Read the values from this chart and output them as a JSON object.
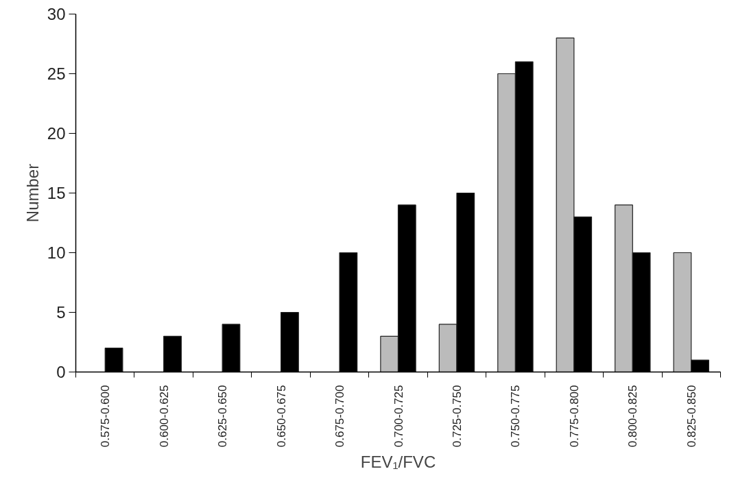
{
  "chart_data": {
    "type": "bar",
    "xlabel": "FEV₁/FVC",
    "ylabel": "Number",
    "categories": [
      "0.575-0.600",
      "0.600-0.625",
      "0.625-0.650",
      "0.650-0.675",
      "0.675-0.700",
      "0.700-0.725",
      "0.725-0.750",
      "0.750-0.775",
      "0.775-0.800",
      "0.800-0.825",
      "0.825-0.850"
    ],
    "series": [
      {
        "color": "#bbbbbb",
        "values": [
          null,
          null,
          null,
          null,
          null,
          3,
          4,
          25,
          28,
          14,
          10
        ]
      },
      {
        "color": "#000000",
        "values": [
          2,
          3,
          4,
          5,
          10,
          14,
          15,
          26,
          13,
          10,
          1
        ]
      }
    ],
    "ylim": [
      0,
      30
    ],
    "yticks": [
      0,
      5,
      10,
      15,
      20,
      25,
      30
    ],
    "grid": false
  }
}
